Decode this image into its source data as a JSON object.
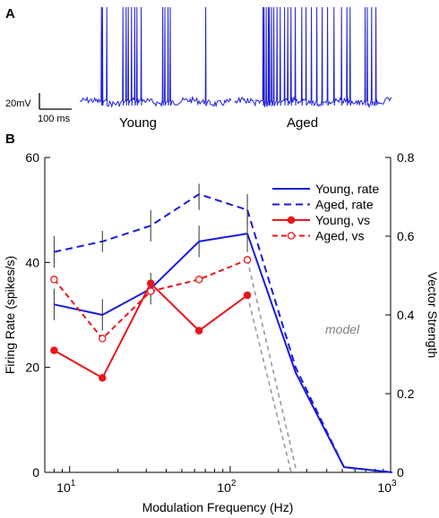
{
  "panel_a": {
    "label": "A",
    "scale_voltage": "20mV",
    "scale_time": "100 ms",
    "trace_young_label": "Young",
    "trace_aged_label": "Aged",
    "trace_color": "#1f1fd6"
  },
  "panel_b": {
    "label": "B",
    "model_label": "model"
  },
  "colors": {
    "young_rate": "#1a1adb",
    "aged_rate": "#1a1adb",
    "young_vs": "#e8161b",
    "aged_vs": "#e8161b",
    "model": "#9a9a9a"
  },
  "chart_data": {
    "type": "line",
    "xlabel": "Modulation Frequency (Hz)",
    "ylabel": "Firing Rate (spikes/s)",
    "y2label": "Vector Strength",
    "xscale": "log",
    "xlim": [
      7,
      1000
    ],
    "ylim": [
      0,
      60
    ],
    "y2lim": [
      0,
      0.8
    ],
    "x_ticks": [
      {
        "value": 10,
        "base": "10",
        "exp": "1"
      },
      {
        "value": 100,
        "base": "10",
        "exp": "2"
      },
      {
        "value": 1000,
        "base": "10",
        "exp": "3"
      }
    ],
    "y_ticks": [
      0,
      20,
      40,
      60
    ],
    "y2_ticks": [
      0,
      0.2,
      0.4,
      0.6,
      0.8
    ],
    "y2_tick_labels": [
      "0",
      "0.2",
      "0.4",
      "0.6",
      "0.8"
    ],
    "legend_position": "top-right",
    "series": [
      {
        "name": "Young, rate",
        "axis": "left",
        "style": "solid",
        "marker": "none",
        "x": [
          8,
          16,
          32,
          64,
          128
        ],
        "y": [
          32,
          30,
          35,
          44,
          45.5
        ],
        "err_low": [
          29,
          27,
          32,
          41,
          42
        ],
        "err_high": [
          35,
          33,
          38,
          47,
          49
        ]
      },
      {
        "name": "Aged, rate",
        "axis": "left",
        "style": "dashed",
        "marker": "none",
        "x": [
          8,
          16,
          32,
          64,
          128
        ],
        "y": [
          42,
          44,
          47,
          53,
          50
        ],
        "err_low": [
          39,
          42,
          44,
          50,
          47
        ],
        "err_high": [
          45,
          46,
          50,
          55,
          53
        ]
      },
      {
        "name": "Young, vs",
        "axis": "right",
        "style": "solid",
        "marker": "filled",
        "x": [
          8,
          16,
          32,
          64,
          128
        ],
        "y": [
          0.31,
          0.24,
          0.48,
          0.36,
          0.45
        ]
      },
      {
        "name": "Aged, vs",
        "axis": "right",
        "style": "dashed",
        "marker": "open",
        "x": [
          8,
          16,
          32,
          64,
          128
        ],
        "y": [
          0.49,
          0.34,
          0.46,
          0.49,
          0.54
        ]
      },
      {
        "name": "Young model",
        "axis": "left",
        "style": "solid",
        "marker": "none",
        "x": [
          128,
          256,
          512,
          1024
        ],
        "y": [
          45.5,
          19,
          1,
          0
        ]
      },
      {
        "name": "Aged model",
        "axis": "left",
        "style": "dashed",
        "marker": "none",
        "x": [
          128,
          256,
          512,
          1024
        ],
        "y": [
          50,
          20,
          1,
          0
        ]
      },
      {
        "name": "Young vs model",
        "axis": "right",
        "style": "dashed-gray",
        "marker": "none",
        "x": [
          128,
          240
        ],
        "y": [
          0.45,
          0
        ]
      },
      {
        "name": "Aged vs model",
        "axis": "right",
        "style": "dashed-gray",
        "marker": "none",
        "x": [
          128,
          260
        ],
        "y": [
          0.54,
          0
        ]
      }
    ]
  }
}
